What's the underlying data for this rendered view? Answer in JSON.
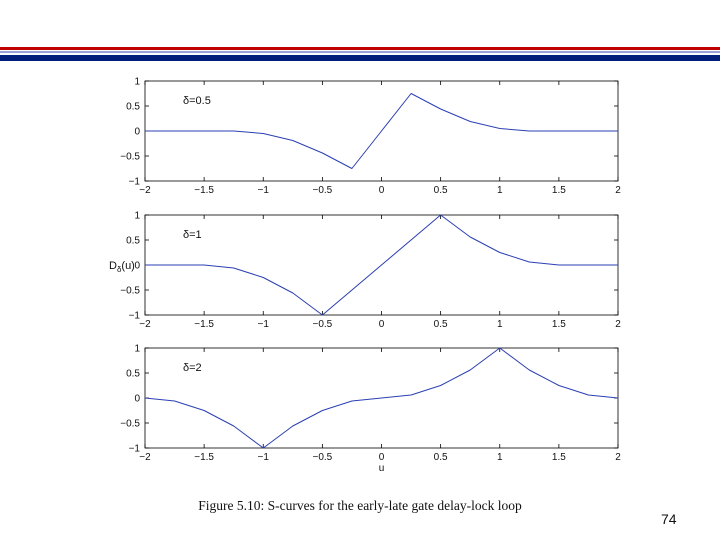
{
  "slide": {
    "page_number": "74",
    "header_colors": [
      "#c00000",
      "#9aa3d8",
      "#001f7a"
    ]
  },
  "figure": {
    "caption": "Figure 5.10: S-curves for the early-late gate delay-lock loop"
  },
  "chart_data": [
    {
      "type": "line",
      "panel_label": "δ=0.5",
      "xlabel": "",
      "ylabel": "",
      "xlim": [
        -2,
        2
      ],
      "ylim": [
        -1,
        1
      ],
      "xticks": [
        "−2",
        "−1.5",
        "−1",
        "−0.5",
        "0",
        "0.5",
        "1",
        "1.5",
        "2"
      ],
      "yticks": [
        "1",
        "0.5",
        "0",
        "−0.5",
        "−1"
      ],
      "line_color": "#2b3fb3",
      "series": [
        {
          "x": [
            -2,
            -1.25,
            -1.0,
            -0.75,
            -0.5,
            -0.25,
            0,
            0.25,
            0.5,
            0.75,
            1.0,
            1.25,
            2
          ],
          "y": [
            0,
            0,
            -0.05,
            -0.19,
            -0.44,
            -0.75,
            0,
            0.75,
            0.44,
            0.19,
            0.05,
            0,
            0
          ]
        }
      ]
    },
    {
      "type": "line",
      "panel_label": "δ=1",
      "xlabel": "",
      "ylabel": "D_δ(u)",
      "xlim": [
        -2,
        2
      ],
      "ylim": [
        -1,
        1
      ],
      "xticks": [
        "−2",
        "−1.5",
        "−1",
        "−0.5",
        "0",
        "0.5",
        "1",
        "1.5",
        "2"
      ],
      "yticks": [
        "1",
        "0.5",
        "0",
        "−0.5",
        "−1"
      ],
      "line_color": "#2b3fb3",
      "series": [
        {
          "x": [
            -2,
            -1.5,
            -1.25,
            -1.0,
            -0.75,
            -0.5,
            0,
            0.5,
            0.75,
            1.0,
            1.25,
            1.5,
            2
          ],
          "y": [
            0,
            0,
            -0.06,
            -0.25,
            -0.56,
            -1.0,
            0,
            1.0,
            0.56,
            0.25,
            0.06,
            0,
            0
          ]
        }
      ]
    },
    {
      "type": "line",
      "panel_label": "δ=2",
      "xlabel": "u",
      "ylabel": "",
      "xlim": [
        -2,
        2
      ],
      "ylim": [
        -1,
        1
      ],
      "xticks": [
        "−2",
        "−1.5",
        "−1",
        "−0.5",
        "0",
        "0.5",
        "1",
        "1.5",
        "2"
      ],
      "yticks": [
        "1",
        "0.5",
        "0",
        "−0.5",
        "−1"
      ],
      "line_color": "#2b3fb3",
      "series": [
        {
          "x": [
            -2,
            -1.75,
            -1.5,
            -1.25,
            -1.0,
            -0.75,
            -0.5,
            -0.25,
            0,
            0.25,
            0.5,
            0.75,
            1.0,
            1.25,
            1.5,
            1.75,
            2
          ],
          "y": [
            0,
            -0.06,
            -0.25,
            -0.56,
            -1.0,
            -0.56,
            -0.25,
            -0.06,
            0,
            0.06,
            0.25,
            0.56,
            1.0,
            0.56,
            0.25,
            0.06,
            0
          ]
        }
      ]
    }
  ]
}
